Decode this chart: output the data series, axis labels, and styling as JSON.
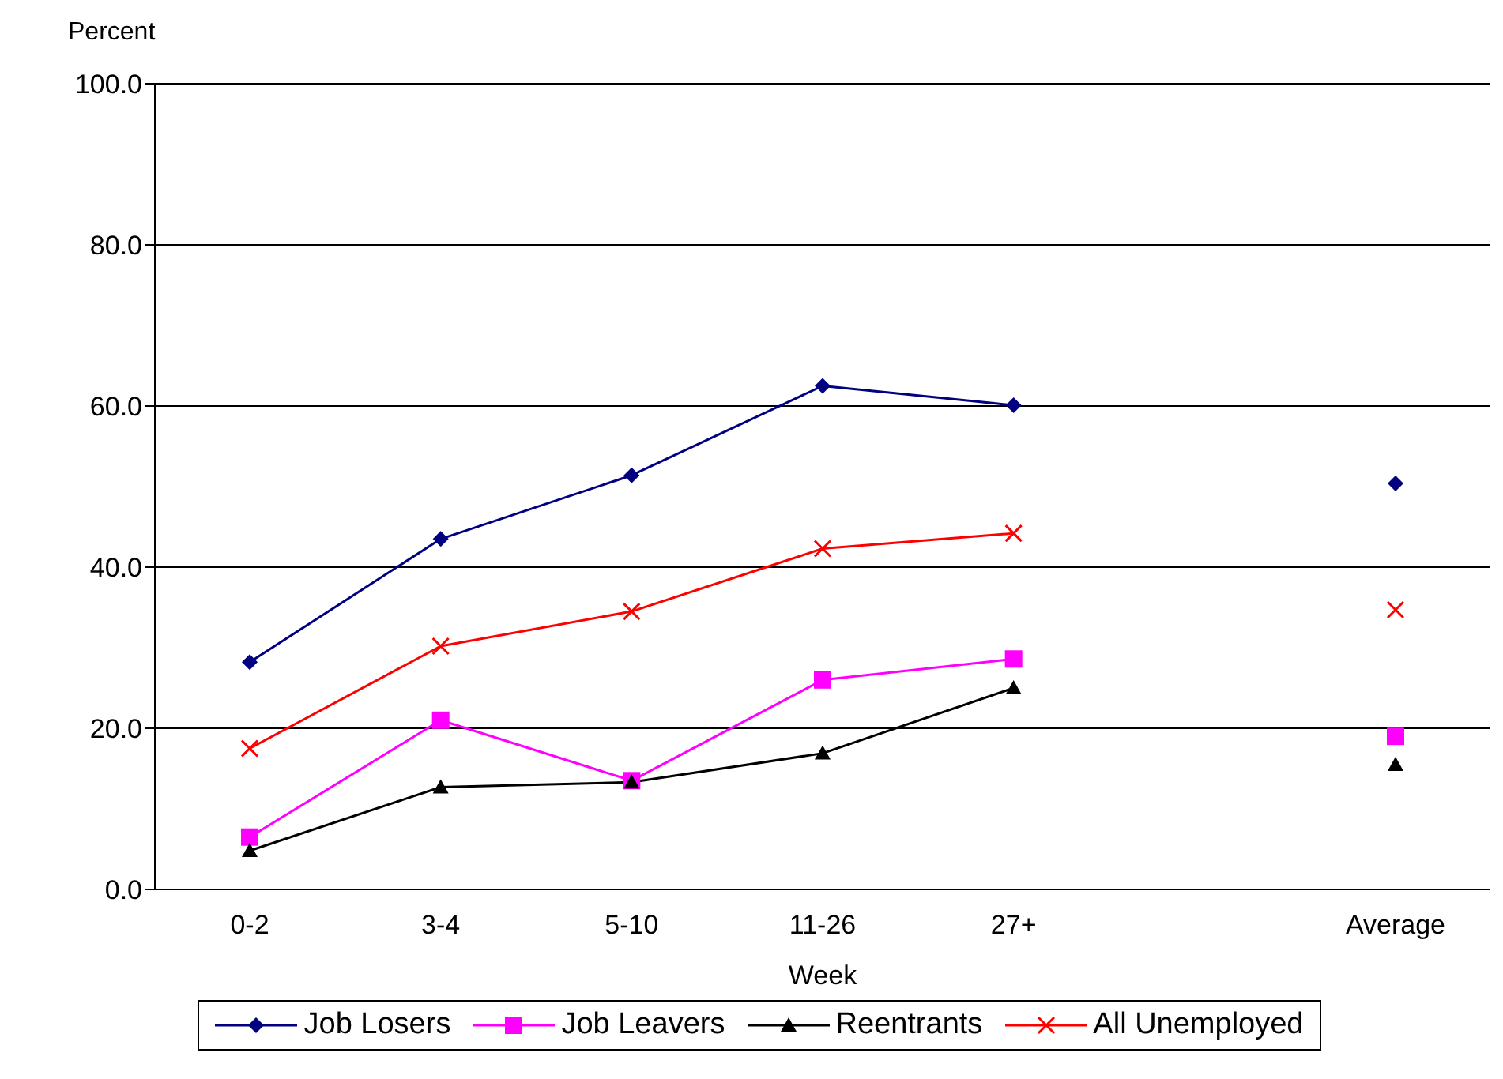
{
  "chart_data": {
    "type": "line",
    "categories": [
      "0-2",
      "3-4",
      "5-10",
      "11-26",
      "27+",
      null,
      "Average"
    ],
    "series": [
      {
        "name": "Job Losers",
        "color": "#000080",
        "marker": "diamond",
        "values": [
          28.2,
          43.5,
          51.4,
          62.5,
          60.1,
          null,
          50.4
        ]
      },
      {
        "name": "Job Leavers",
        "color": "#ff00ff",
        "marker": "square",
        "values": [
          6.5,
          21.0,
          13.5,
          26.0,
          28.6,
          null,
          19.0
        ]
      },
      {
        "name": "Reentrants",
        "color": "#000000",
        "marker": "triangle",
        "values": [
          4.8,
          12.7,
          13.3,
          16.9,
          25.0,
          null,
          15.5
        ]
      },
      {
        "name": "All Unemployed",
        "color": "#ff0000",
        "marker": "cross",
        "values": [
          17.5,
          30.2,
          34.5,
          42.3,
          44.2,
          null,
          34.7
        ]
      }
    ],
    "ylabel": "Percent",
    "xlabel": "Week",
    "ylim": [
      0,
      100
    ],
    "yticks": [
      {
        "value": 0,
        "label": "0.0"
      },
      {
        "value": 20,
        "label": "20.0"
      },
      {
        "value": 40,
        "label": "40.0"
      },
      {
        "value": 60,
        "label": "60.0"
      },
      {
        "value": 80,
        "label": "80.0"
      },
      {
        "value": 100,
        "label": "100.0"
      }
    ],
    "grid": "y",
    "legend": "bottom",
    "line_style": "solid"
  }
}
